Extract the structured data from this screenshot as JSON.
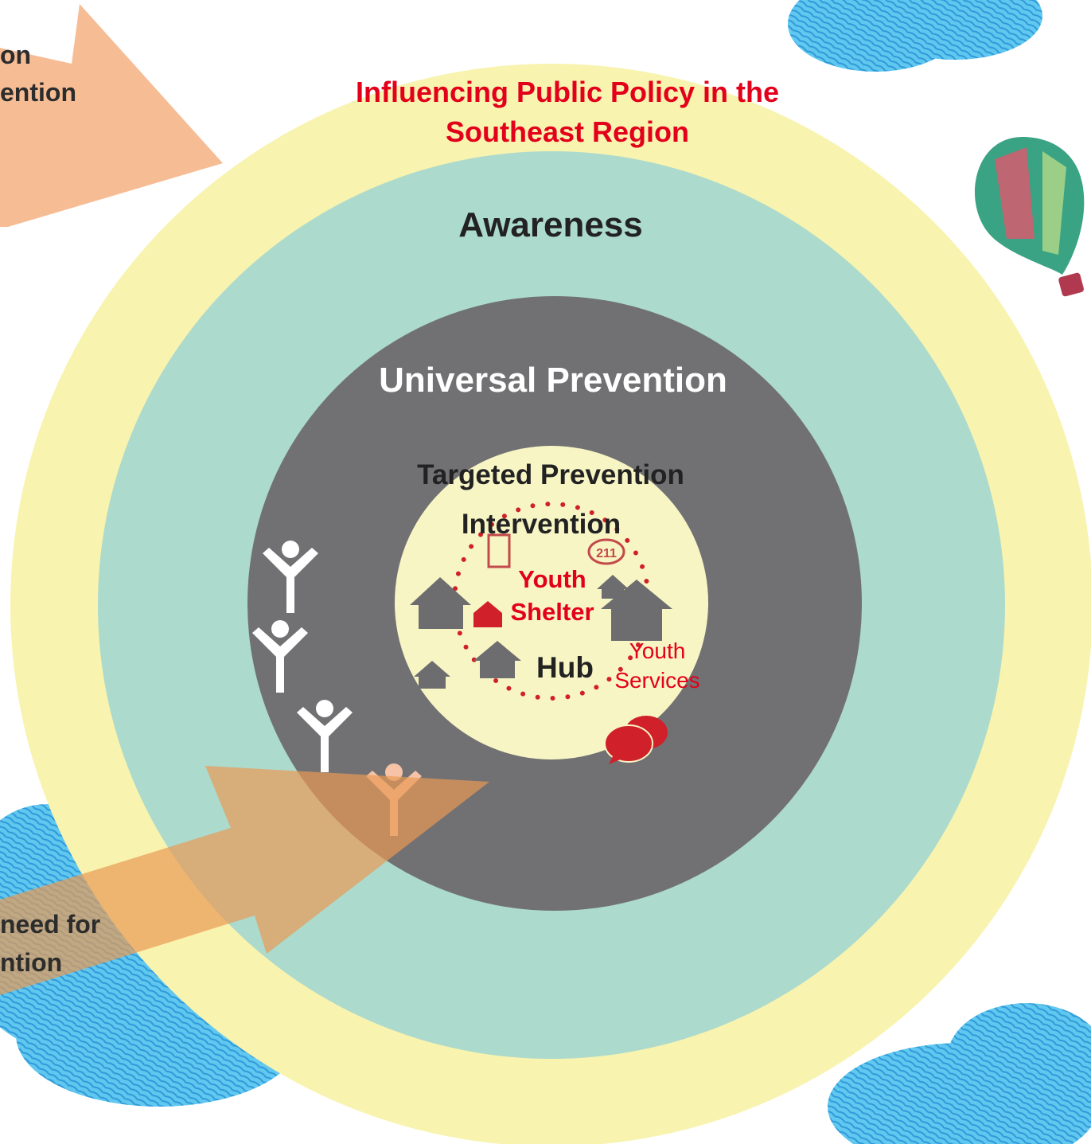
{
  "header": {
    "title_lines": [
      "Influencing Public Policy in the",
      "Southeast Region"
    ]
  },
  "rings": {
    "awareness": "Awareness",
    "universal": "Universal Prevention",
    "targeted": "Targeted Prevention",
    "intervention": "Intervention"
  },
  "arrows": [
    {
      "label_lines": [
        "on",
        "ention"
      ]
    },
    {
      "label_lines": [
        "need for",
        "ntion"
      ]
    }
  ],
  "hub": {
    "icon_label": "211",
    "shelter_lines": [
      "Youth",
      "Shelter"
    ],
    "hub_label": "Hub",
    "services_lines": [
      "Youth",
      "Services"
    ]
  }
}
